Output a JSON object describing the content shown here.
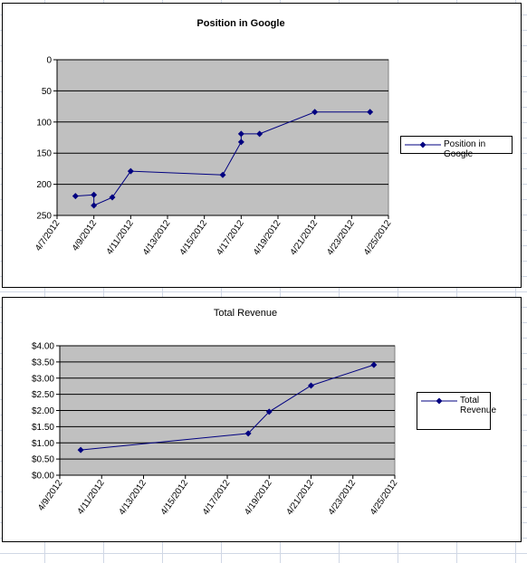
{
  "chart_data": [
    {
      "type": "line",
      "title": "Position in Google",
      "x": [
        "4/8/2012",
        "4/9/2012",
        "4/9/2012",
        "4/10/2012",
        "4/11/2012",
        "4/16/2012",
        "4/17/2012",
        "4/17/2012",
        "4/18/2012",
        "4/21/2012",
        "4/24/2012"
      ],
      "series": [
        {
          "name": "Position in Google",
          "color": "#000080",
          "values": [
            219,
            217,
            234,
            221,
            179,
            185,
            132,
            119,
            119,
            84,
            84
          ]
        }
      ],
      "xlim": [
        "4/7/2012",
        "4/25/2012"
      ],
      "xticks": [
        "4/7/2012",
        "4/9/2012",
        "4/11/2012",
        "4/13/2012",
        "4/15/2012",
        "4/17/2012",
        "4/19/2012",
        "4/21/2012",
        "4/23/2012",
        "4/25/2012"
      ],
      "ylim": [
        0,
        250
      ],
      "yticks": [
        0,
        50,
        100,
        150,
        200,
        250
      ],
      "y_reversed": true,
      "grid": true,
      "legend": "right"
    },
    {
      "type": "line",
      "title": "Total Revenue",
      "x": [
        "4/10/2012",
        "4/18/2012",
        "4/19/2012",
        "4/21/2012",
        "4/24/2012"
      ],
      "series": [
        {
          "name": "Total Revenue",
          "color": "#000080",
          "values": [
            0.78,
            1.29,
            1.96,
            2.77,
            3.41
          ]
        }
      ],
      "xlim": [
        "4/9/2012",
        "4/25/2012"
      ],
      "xticks": [
        "4/9/2012",
        "4/11/2012",
        "4/13/2012",
        "4/15/2012",
        "4/17/2012",
        "4/19/2012",
        "4/21/2012",
        "4/23/2012",
        "4/25/2012"
      ],
      "ylim": [
        0,
        4
      ],
      "yticks": [
        {
          "value": 0,
          "label": "$0.00"
        },
        {
          "value": 0.5,
          "label": "$0.50"
        },
        {
          "value": 1,
          "label": "$1.00"
        },
        {
          "value": 1.5,
          "label": "$1.50"
        },
        {
          "value": 2,
          "label": "$2.00"
        },
        {
          "value": 2.5,
          "label": "$2.50"
        },
        {
          "value": 3,
          "label": "$3.00"
        },
        {
          "value": 3.5,
          "label": "$3.50"
        },
        {
          "value": 4,
          "label": "$4.00"
        }
      ],
      "y_reversed": false,
      "grid": true,
      "legend": "right"
    }
  ]
}
